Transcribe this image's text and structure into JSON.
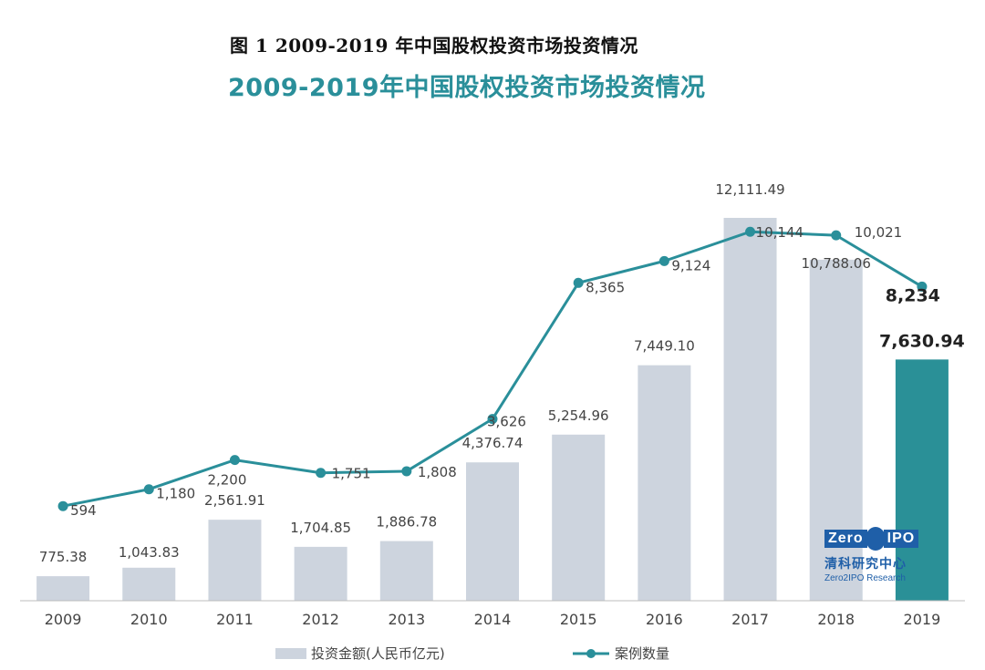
{
  "figure_caption": "图 1 2009-2019 年中国股权投资市场投资情况",
  "chart_data": {
    "type": "bar+line",
    "title": "2009-2019年中国股权投资市场投资情况",
    "categories": [
      "2009",
      "2010",
      "2011",
      "2012",
      "2013",
      "2014",
      "2015",
      "2016",
      "2017",
      "2018",
      "2019"
    ],
    "series": [
      {
        "name": "投资金额(人民币亿元)",
        "type": "bar",
        "values": [
          775.38,
          1043.83,
          2561.91,
          1704.85,
          1886.78,
          4376.74,
          5254.96,
          7449.1,
          12111.49,
          10788.06,
          7630.94
        ],
        "labels": [
          "775.38",
          "1,043.83",
          "2,561.91",
          "1,704.85",
          "1,886.78",
          "4,376.74",
          "5,254.96",
          "7,449.10",
          "12,111.49",
          "10,788.06",
          "7,630.94"
        ]
      },
      {
        "name": "案例数量",
        "type": "line",
        "values": [
          594,
          1180,
          2200,
          1751,
          1808,
          3626,
          8365,
          9124,
          10144,
          10021,
          8234
        ],
        "labels": [
          "594",
          "1,180",
          "2,200",
          "1,751",
          "1,808",
          "3,626",
          "8,365",
          "9,124",
          "10,144",
          "10,021",
          "8,234"
        ]
      }
    ],
    "bar_ylim": [
      0,
      13600
    ],
    "line_ylim": [
      -2700,
      12500
    ],
    "highlight_index": 10,
    "xlabel": "",
    "ylabel": "",
    "legend_position": "bottom"
  },
  "colors": {
    "bar": "#cdd4de",
    "bar_highlight": "#2a9097",
    "line": "#2a8f9a",
    "axis": "#bcbcbc",
    "text": "#444444"
  },
  "logo": {
    "word_left": "Zero",
    "word_right": "IPO",
    "name_cn": "清科研究中心",
    "name_en": "Zero2IPO Research"
  }
}
